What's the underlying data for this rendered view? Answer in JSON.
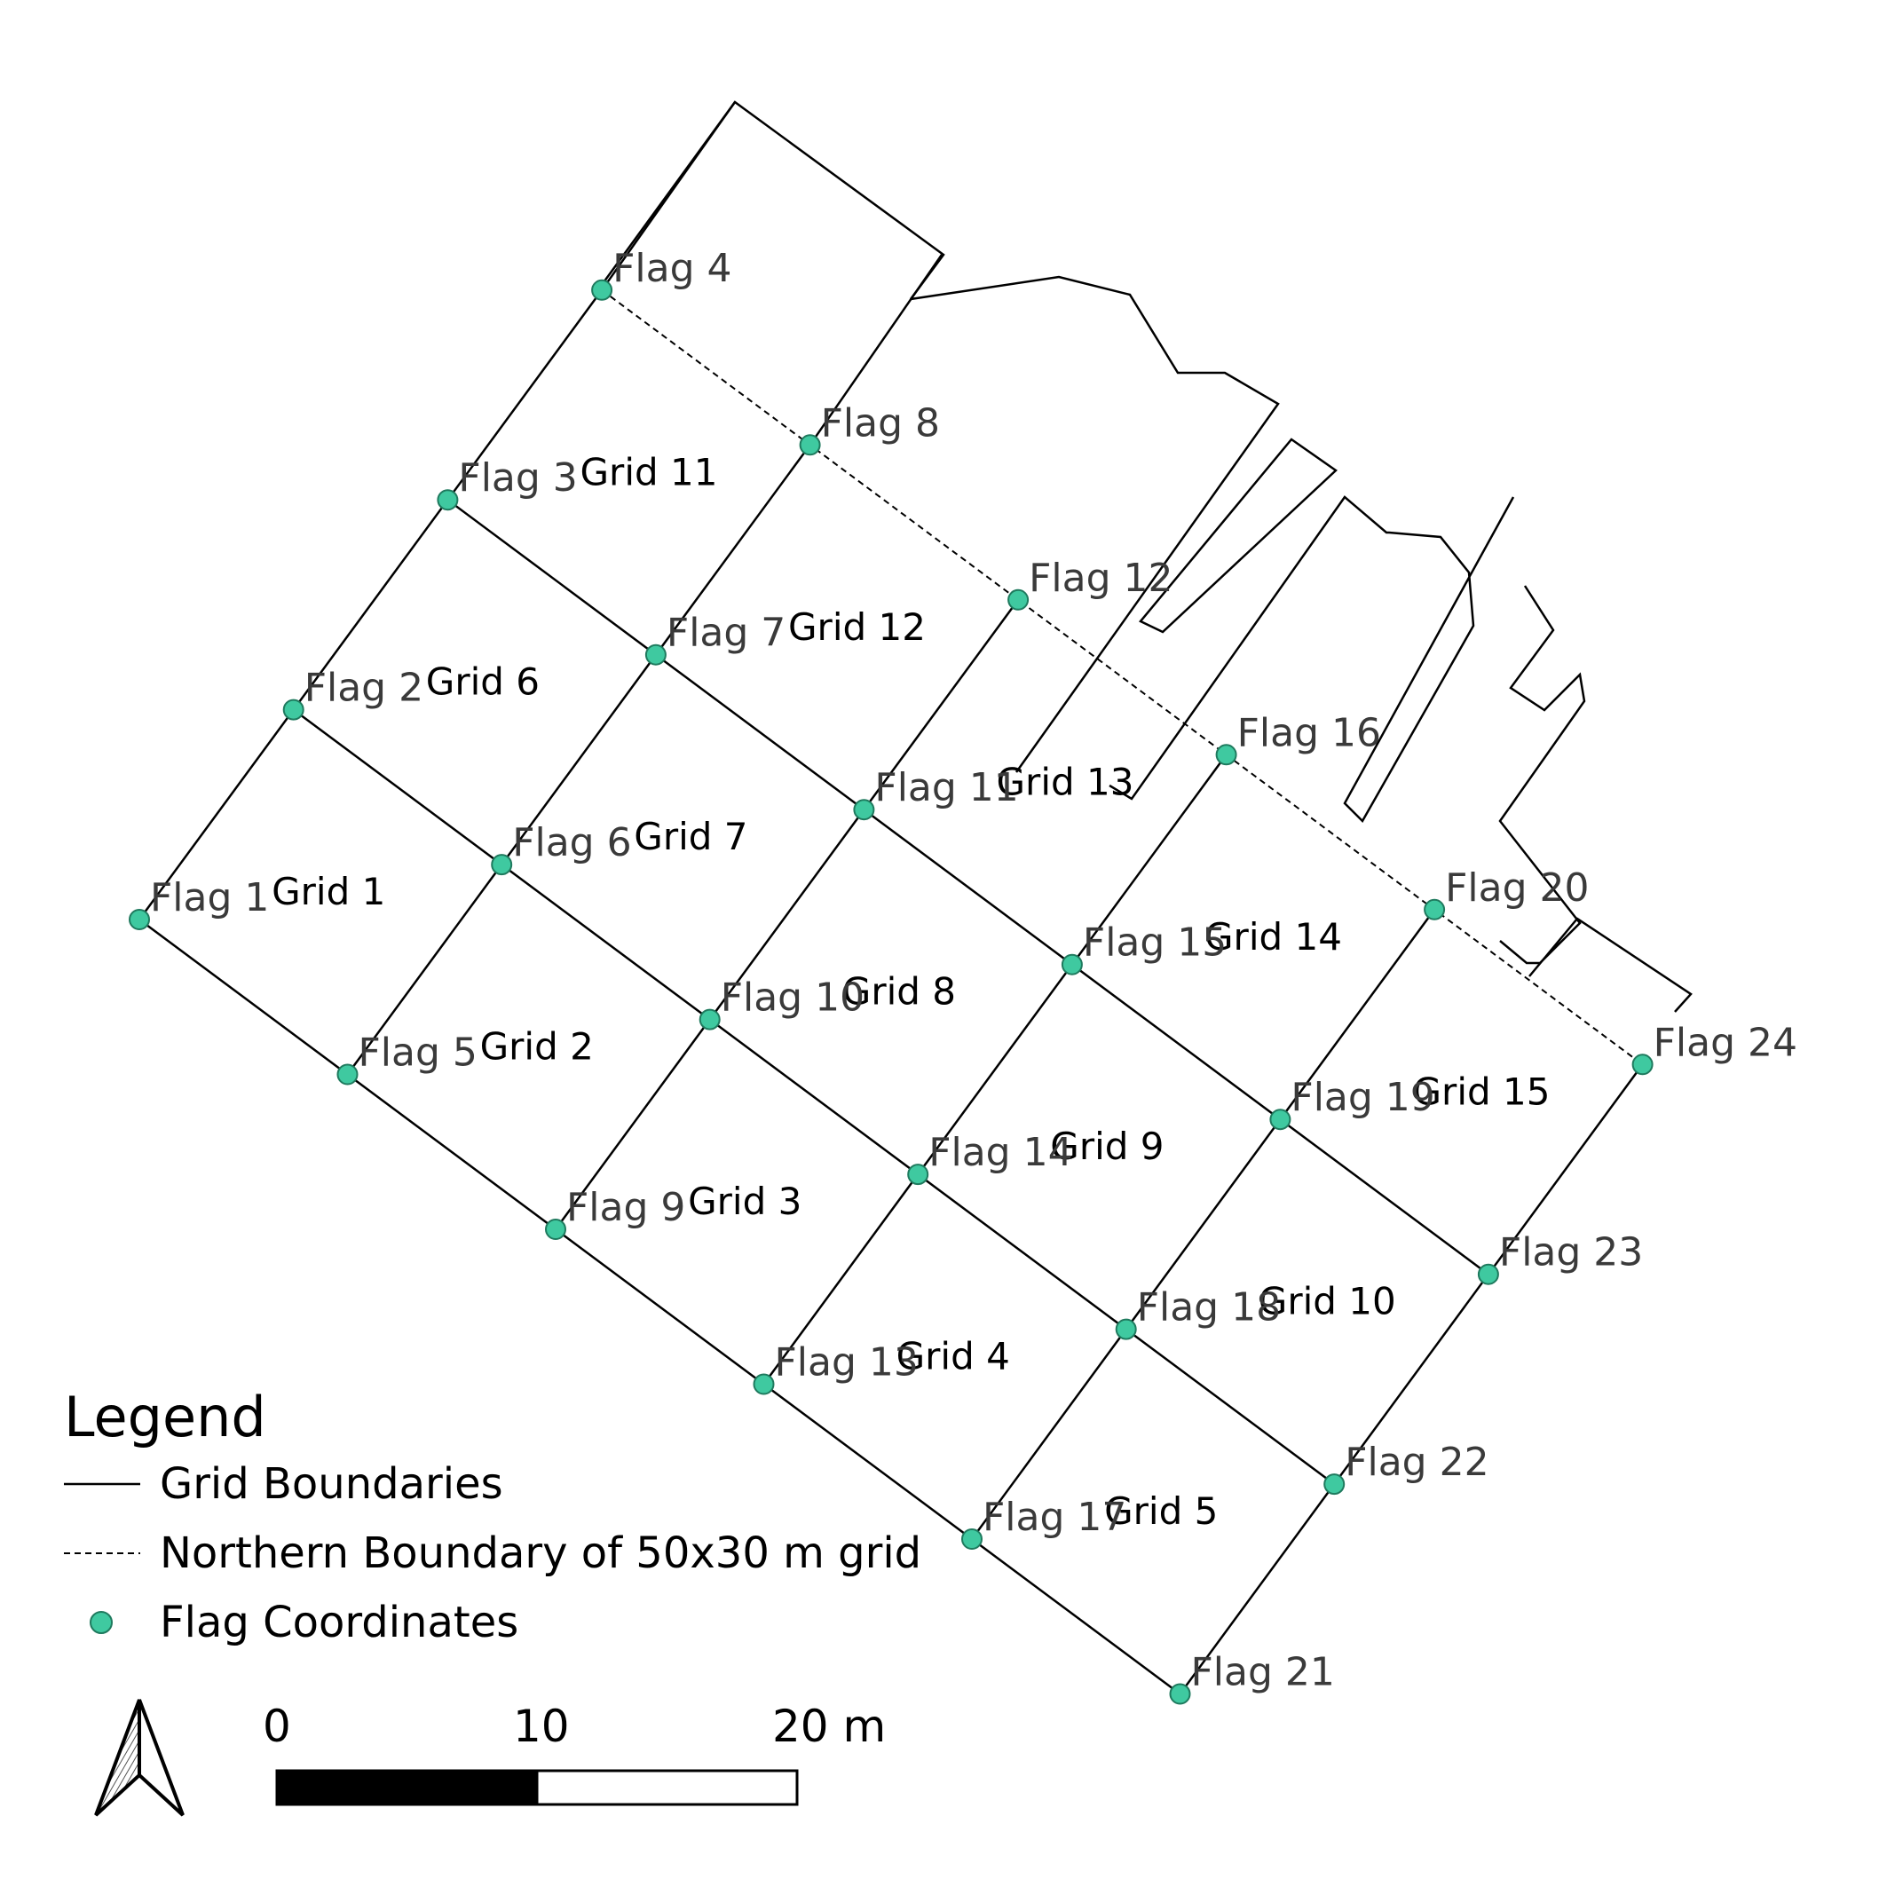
{
  "map": {
    "flags": [
      {
        "id": 1,
        "label": "Flag 1"
      },
      {
        "id": 2,
        "label": "Flag 2"
      },
      {
        "id": 3,
        "label": "Flag 3"
      },
      {
        "id": 4,
        "label": "Flag 4"
      },
      {
        "id": 5,
        "label": "Flag 5"
      },
      {
        "id": 6,
        "label": "Flag 6"
      },
      {
        "id": 7,
        "label": "Flag 7"
      },
      {
        "id": 8,
        "label": "Flag 8"
      },
      {
        "id": 9,
        "label": "Flag 9"
      },
      {
        "id": 10,
        "label": "Flag 10"
      },
      {
        "id": 11,
        "label": "Flag 11"
      },
      {
        "id": 12,
        "label": "Flag 12"
      },
      {
        "id": 13,
        "label": "Flag 13"
      },
      {
        "id": 14,
        "label": "Flag 14"
      },
      {
        "id": 15,
        "label": "Flag 15"
      },
      {
        "id": 16,
        "label": "Flag 16"
      },
      {
        "id": 17,
        "label": "Flag 17"
      },
      {
        "id": 18,
        "label": "Flag 18"
      },
      {
        "id": 19,
        "label": "Flag 19"
      },
      {
        "id": 20,
        "label": "Flag 20"
      },
      {
        "id": 21,
        "label": "Flag 21"
      },
      {
        "id": 22,
        "label": "Flag 22"
      },
      {
        "id": 23,
        "label": "Flag 23"
      },
      {
        "id": 24,
        "label": "Flag 24"
      }
    ],
    "grids": [
      {
        "id": 1,
        "label": "Grid 1"
      },
      {
        "id": 2,
        "label": "Grid 2"
      },
      {
        "id": 3,
        "label": "Grid 3"
      },
      {
        "id": 4,
        "label": "Grid 4"
      },
      {
        "id": 5,
        "label": "Grid 5"
      },
      {
        "id": 6,
        "label": "Grid 6"
      },
      {
        "id": 7,
        "label": "Grid 7"
      },
      {
        "id": 8,
        "label": "Grid 8"
      },
      {
        "id": 9,
        "label": "Grid 9"
      },
      {
        "id": 10,
        "label": "Grid 10"
      },
      {
        "id": 11,
        "label": "Grid 11"
      },
      {
        "id": 12,
        "label": "Grid 12"
      },
      {
        "id": 13,
        "label": "Grid 13"
      },
      {
        "id": 14,
        "label": "Grid 14"
      },
      {
        "id": 15,
        "label": "Grid 15"
      }
    ],
    "colors": {
      "flag_fill": "#3fc9a0",
      "flag_stroke": "#1f7a5e",
      "line": "#000000"
    }
  },
  "legend": {
    "title": "Legend",
    "grid_boundaries": "Grid Boundaries",
    "northern_boundary": "Northern Boundary of 50x30 m grid",
    "flag_coordinates": "Flag Coordinates"
  },
  "scale_bar": {
    "label_0": "0",
    "label_10": "10",
    "label_20": "20 m"
  },
  "north_arrow": {
    "icon": "north-arrow-icon"
  }
}
